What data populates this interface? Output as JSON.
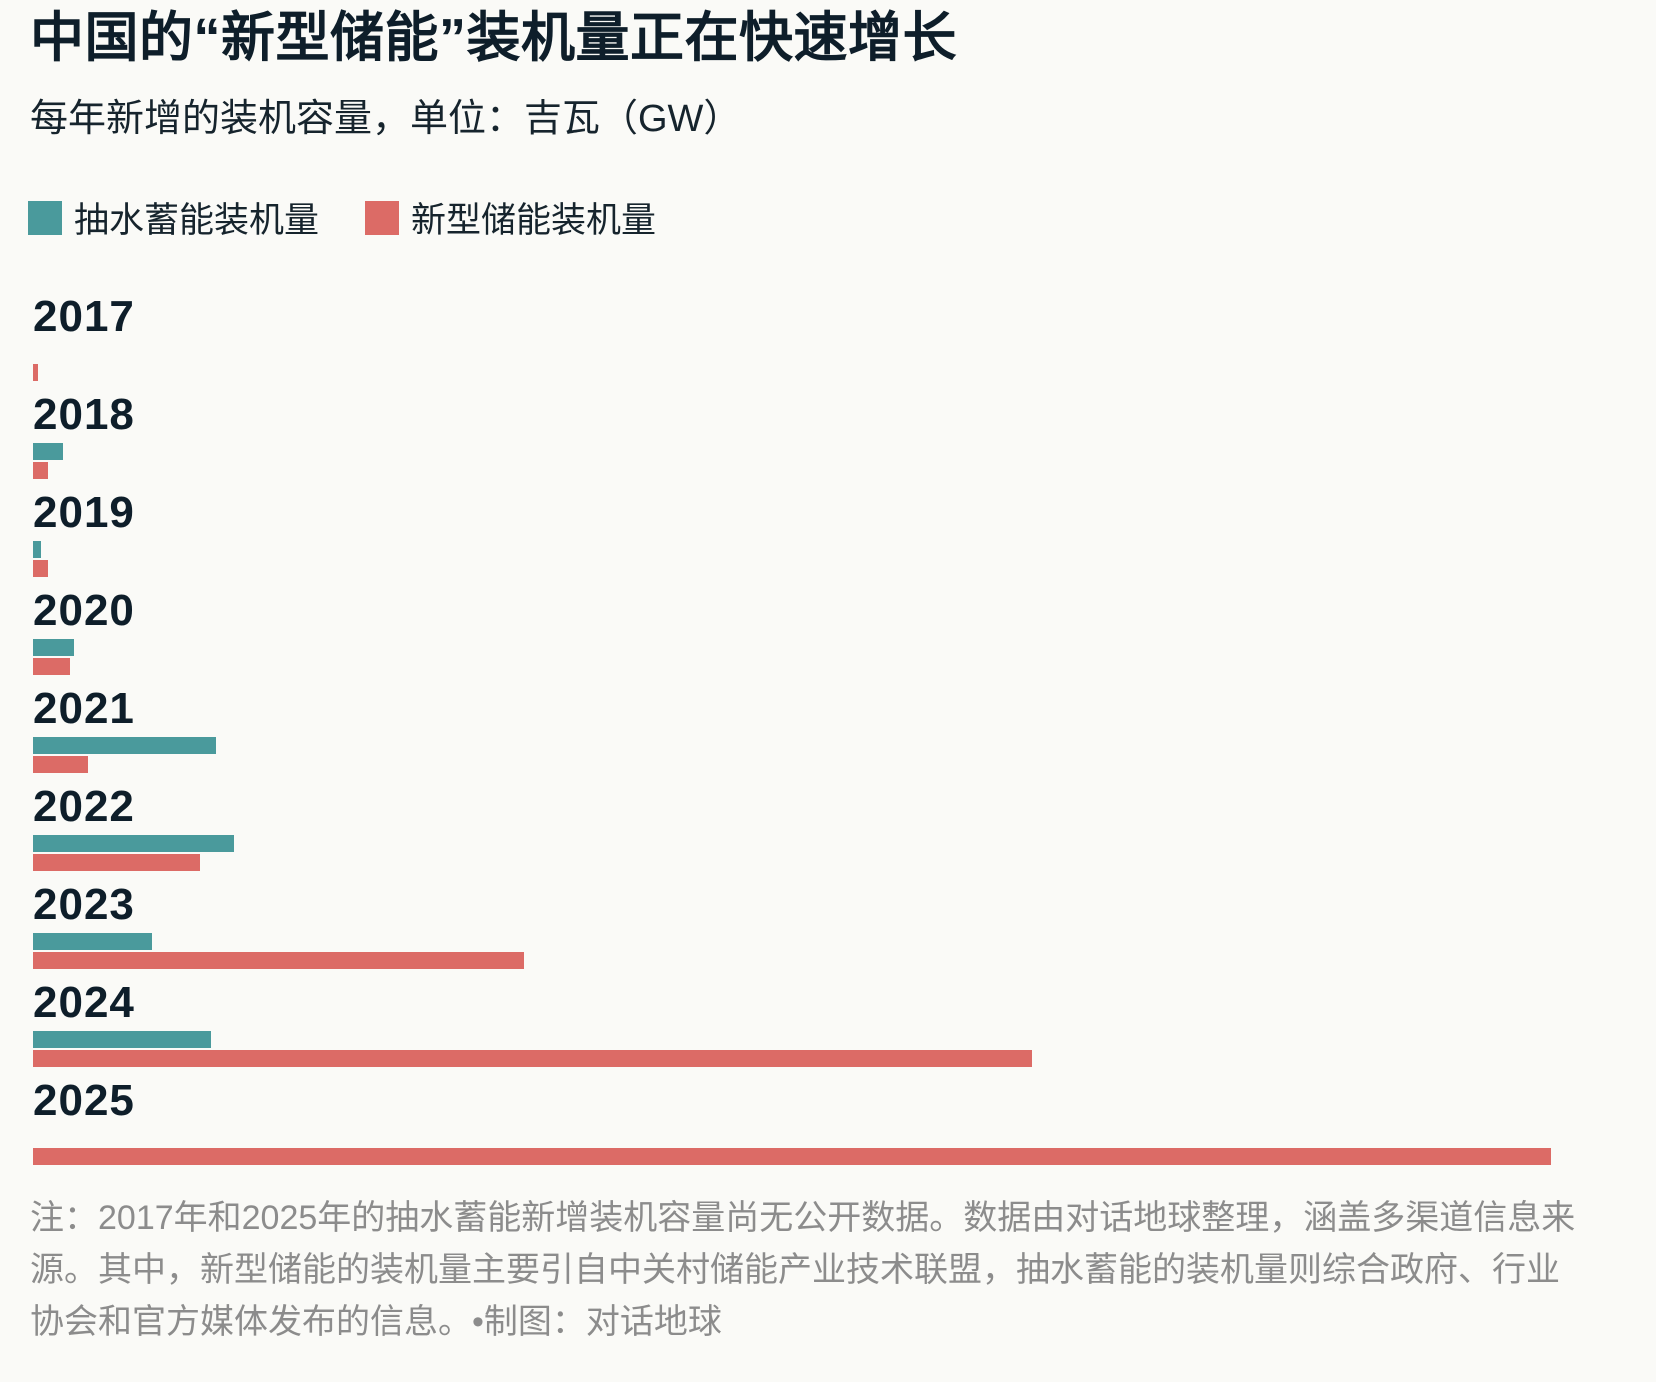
{
  "page": {
    "background": "#fafaf7",
    "title": "中国的“新型储能”装机量正在快速增长",
    "subtitle": "每年新增的装机容量，单位：吉瓦（GW）"
  },
  "legend": {
    "items": [
      {
        "label": "抽水蓄能装机量",
        "color": "#4a9a9c"
      },
      {
        "label": "新型储能装机量",
        "color": "#dc6b66"
      }
    ]
  },
  "chart_data": {
    "type": "bar",
    "orientation": "horizontal",
    "title": "中国的“新型储能”装机量正在快速增长",
    "subtitle": "每年新增的装机容量，单位：吉瓦（GW）",
    "unit": "GW",
    "categories": [
      "2017",
      "2018",
      "2019",
      "2020",
      "2021",
      "2022",
      "2023",
      "2024",
      "2025"
    ],
    "series": [
      {
        "name": "抽水蓄能装机量",
        "color": "#4a9a9c",
        "values": [
          null,
          1.3,
          0.35,
          1.8,
          8.0,
          8.8,
          5.2,
          7.8,
          null
        ]
      },
      {
        "name": "新型储能装机量",
        "color": "#dc6b66",
        "values": [
          0.2,
          0.65,
          0.65,
          1.6,
          2.4,
          7.3,
          21.5,
          43.7,
          66.4
        ]
      }
    ],
    "value_axis": {
      "min": 0,
      "max": 66.4,
      "visible": false
    },
    "grid": false,
    "legend_position": "top",
    "missing_data_years": {
      "抽水蓄能装机量": [
        "2017",
        "2025"
      ]
    }
  },
  "footer": {
    "note": "注：2017年和2025年的抽水蓄能新增装机容量尚无公开数据。数据由对话地球整理，涵盖多渠道信息来源。其中，新型储能的装机量主要引自中关村储能产业技术联盟，抽水蓄能的装机量则综合政府、行业协会和官方媒体发布的信息。•制图：对话地球"
  }
}
